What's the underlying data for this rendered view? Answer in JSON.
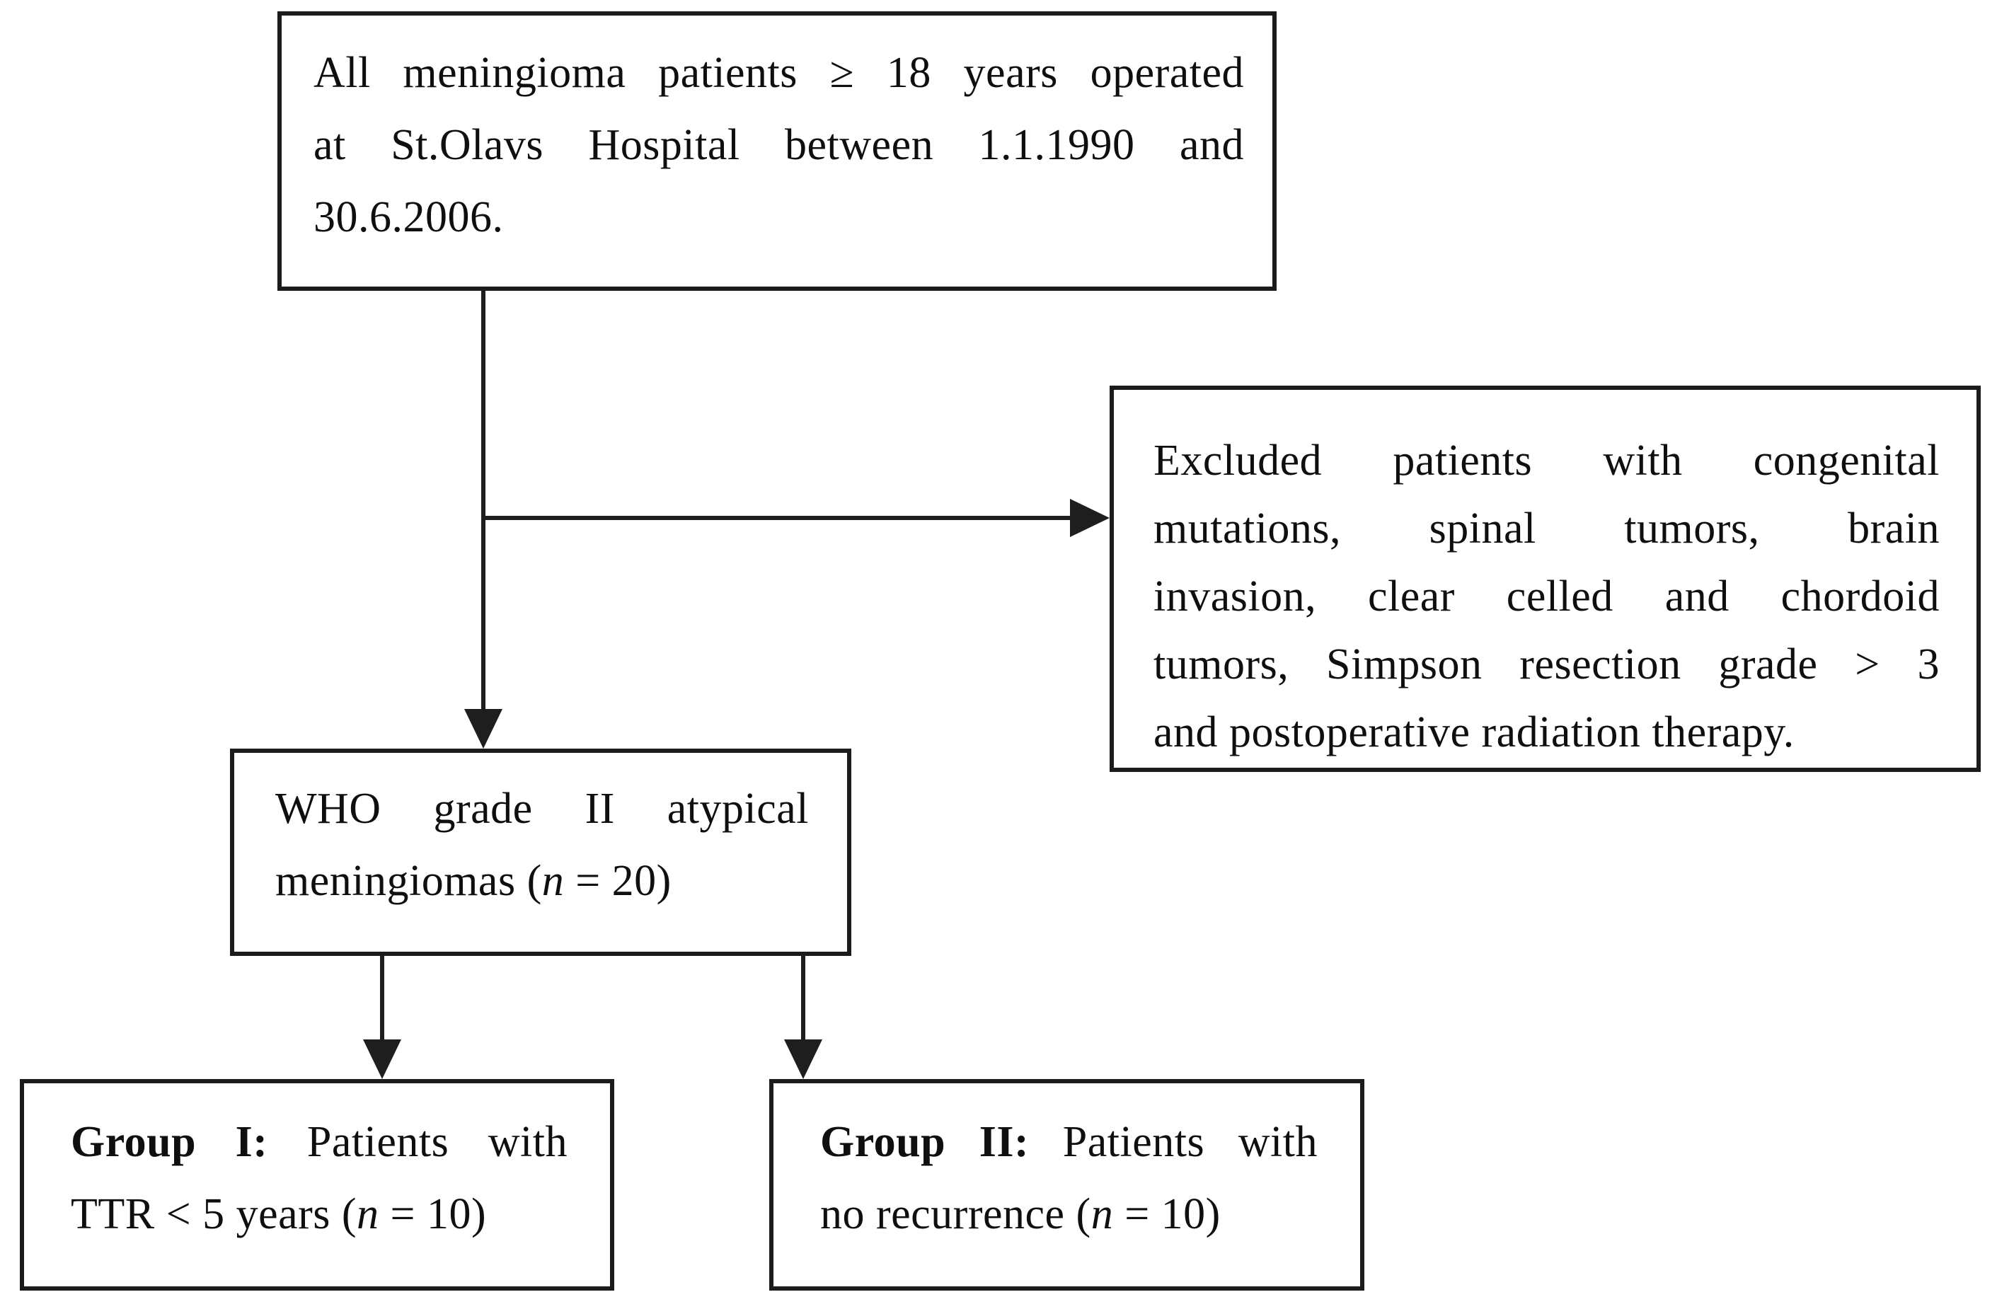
{
  "source": {
    "line1": "All meningioma patients ≥ 18 years operated",
    "line2": "at St.Olavs Hospital between 1.1.1990 and",
    "line3": "30.6.2006."
  },
  "excluded": {
    "line1": "Excluded patients with congenital",
    "line2": "mutations, spinal tumors, brain",
    "line3": "invasion, clear celled and chordoid",
    "line4": "tumors, Simpson resection grade > 3",
    "line5": "and postoperative radiation therapy."
  },
  "who": {
    "line1": "WHO grade II atypical",
    "line2_pre": "meningiomas (",
    "line2_var": "n",
    "line2_post": " = 20)"
  },
  "group1": {
    "label": "Group I:",
    "line1_rest": "Patients with",
    "line2_pre": "TTR < 5 years (",
    "line2_var": "n",
    "line2_post": " = 10)"
  },
  "group2": {
    "label": "Group II:",
    "line1_rest": "Patients with",
    "line2_pre": "no recurrence (",
    "line2_var": "n",
    "line2_post": " = 10)"
  },
  "colors": {
    "line": "#1e1e1e",
    "border": "#1b1b1b",
    "text": "#0f0f0f",
    "background": "#ffffff"
  }
}
